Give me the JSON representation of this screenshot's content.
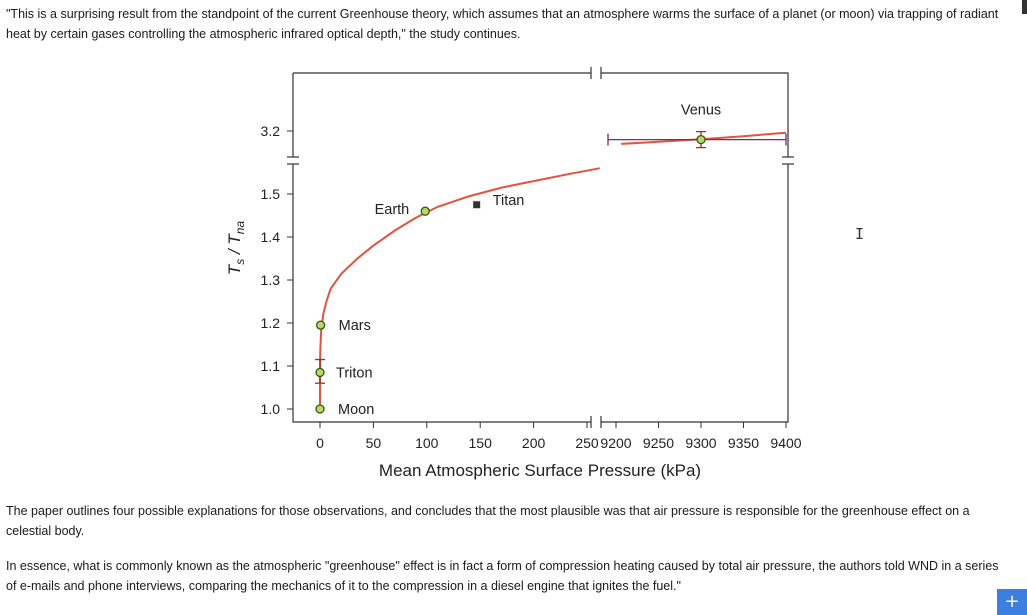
{
  "article": {
    "intro_quote": "\"This is a surprising result from the standpoint of the current Greenhouse theory, which assumes that an atmosphere warms the surface of a planet (or moon) via trapping of radiant heat by certain gases controlling the atmospheric infrared optical depth,\" the study continues.",
    "paragraph_2": "The paper outlines four possible explanations for those observations, and concludes that the most plausible was that air pressure is responsible for the greenhouse effect on a celestial body.",
    "paragraph_3": "In essence, what is commonly known as the atmospheric \"greenhouse\" effect is in fact a form of compression heating caused by total air pressure, the authors told WND in a series of e-mails and phone interviews, comparing the mechanics of it to the compression in a diesel engine that ignites the fuel.\""
  },
  "ui": {
    "cursor_glyph": "I",
    "plus_button": "+"
  },
  "chart_data": {
    "type": "scatter",
    "title": "",
    "xlabel": "Mean Atmospheric Surface Pressure (kPa)",
    "ylabel_main": "T",
    "ylabel_main_sub": "s",
    "ylabel_sep": " / T",
    "ylabel_den_sub": "na",
    "x_segments": [
      {
        "range": [
          0,
          270
        ],
        "ticks": [
          0,
          50,
          100,
          150,
          200,
          250
        ]
      },
      {
        "range": [
          9190,
          9400
        ],
        "ticks": [
          9200,
          9250,
          9300,
          9350,
          9400
        ]
      }
    ],
    "y_segments": [
      {
        "range": [
          0.98,
          1.54
        ],
        "ticks": [
          1.0,
          1.1,
          1.2,
          1.3,
          1.4,
          1.5
        ]
      },
      {
        "range": [
          3.15,
          3.28
        ],
        "ticks": [
          3.2
        ]
      }
    ],
    "grid": false,
    "points": [
      {
        "name": "Moon",
        "x": 0.0,
        "y": 1.0,
        "yerr_low": 0.0,
        "yerr_high": 0.0
      },
      {
        "name": "Triton",
        "x": 0.0014,
        "y": 1.085,
        "yerr_low": 0.025,
        "yerr_high": 0.03
      },
      {
        "name": "Mars",
        "x": 0.6,
        "y": 1.195,
        "yerr_low": 0.0,
        "yerr_high": 0.0
      },
      {
        "name": "Earth",
        "x": 98.55,
        "y": 1.46,
        "yerr_low": 0.0,
        "yerr_high": 0.0
      },
      {
        "name": "Titan",
        "x": 146.7,
        "y": 1.475,
        "yerr_low": 0.0,
        "yerr_high": 0.0
      },
      {
        "name": "Venus",
        "x": 9300,
        "y": 3.18,
        "yerr_low": 0.01,
        "yerr_high": 0.01,
        "xerr": 100
      }
    ],
    "fit_curve": {
      "description": "regression curve",
      "color": "#e2543c",
      "segment_1": [
        [
          0,
          1.0
        ],
        [
          0.02,
          1.06
        ],
        [
          0.2,
          1.13
        ],
        [
          1,
          1.18
        ],
        [
          3,
          1.22
        ],
        [
          6,
          1.25
        ],
        [
          10,
          1.28
        ],
        [
          20,
          1.315
        ],
        [
          35,
          1.35
        ],
        [
          50,
          1.38
        ],
        [
          70,
          1.415
        ],
        [
          90,
          1.445
        ],
        [
          110,
          1.47
        ],
        [
          140,
          1.495
        ],
        [
          170,
          1.515
        ],
        [
          200,
          1.53
        ],
        [
          230,
          1.545
        ],
        [
          262,
          1.56
        ]
      ],
      "segment_2": [
        [
          9206,
          3.17
        ],
        [
          9250,
          3.175
        ],
        [
          9300,
          3.181
        ],
        [
          9350,
          3.188
        ],
        [
          9400,
          3.196
        ]
      ]
    },
    "colors": {
      "marker_fill": "#b8d860",
      "marker_edge": "#2d5a1e",
      "errorbar": "#7a2a7a",
      "titan_marker": "#333333"
    }
  }
}
